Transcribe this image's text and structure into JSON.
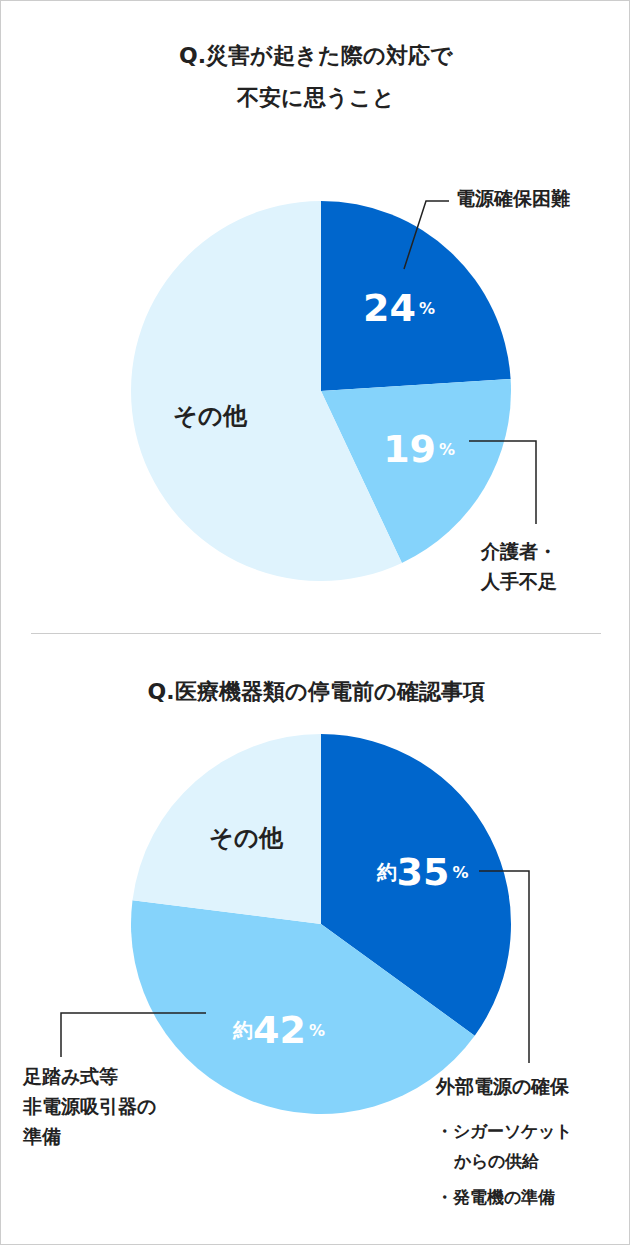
{
  "chart_data": [
    {
      "type": "pie",
      "title": "Q.災害が起きた際の対応で\n不安に思うこと",
      "categories": [
        "電源確保困難",
        "介護者・\n人手不足",
        "その他"
      ],
      "values": [
        24,
        19,
        57
      ],
      "value_labels": [
        "24%",
        "19%",
        null
      ],
      "data_labels": true,
      "colors": [
        "#0066cc",
        "#85d3fb",
        "#dff3fd"
      ]
    },
    {
      "type": "pie",
      "title": "Q.医療機器類の停電前の確認事項",
      "categories": [
        "外部電源の確保",
        "足踏み式等\n非電源吸引器の\n準備",
        "その他"
      ],
      "values": [
        35,
        42,
        23
      ],
      "value_labels": [
        "約35%",
        "約42%",
        null
      ],
      "data_labels": true,
      "annotations": [
        "・シガーソケット\nからの供給",
        "・発電機の準備"
      ],
      "colors": [
        "#0066cc",
        "#85d3fb",
        "#dff3fd"
      ]
    }
  ]
}
